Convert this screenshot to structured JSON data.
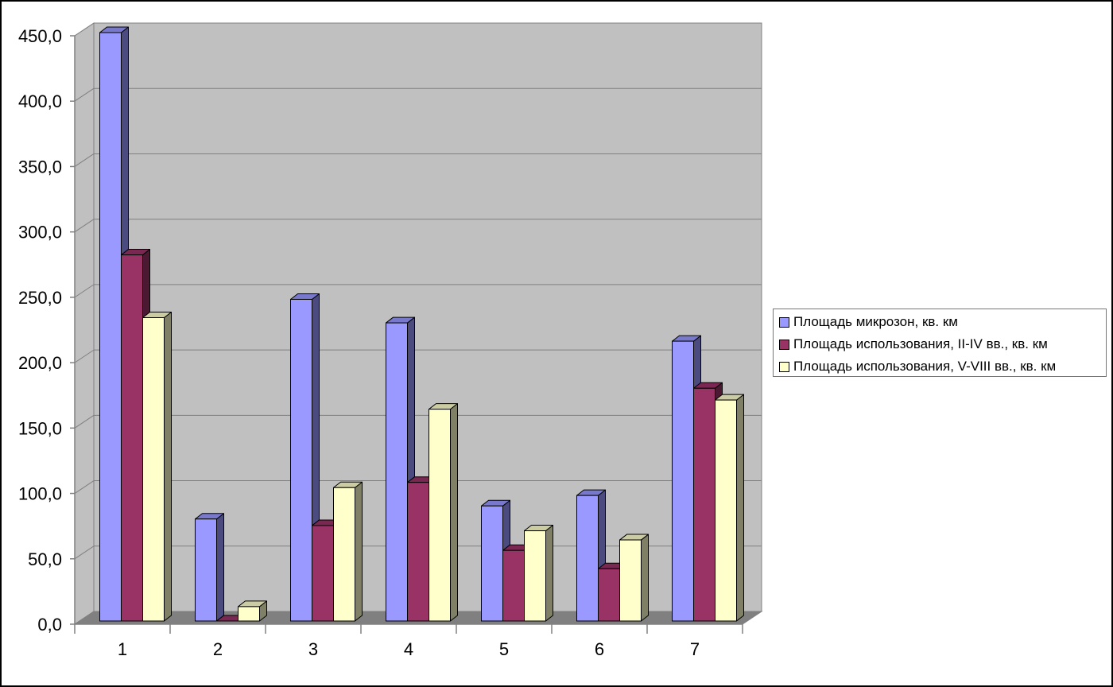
{
  "chart_data": {
    "type": "bar",
    "style": "3d-clustered-column",
    "categories": [
      "1",
      "2",
      "3",
      "4",
      "5",
      "6",
      "7"
    ],
    "series": [
      {
        "name": "Площадь микрозон, кв. км",
        "color": "#9999FF",
        "side_color": "#4B4B80",
        "top_color": "#7878CC",
        "values": [
          450.0,
          78.0,
          246.0,
          228.0,
          88.0,
          96.0,
          214.0
        ]
      },
      {
        "name": "Площадь использования, II-IV вв., кв. км",
        "color": "#993366",
        "side_color": "#4C1933",
        "top_color": "#7A2852",
        "values": [
          280.0,
          0.0,
          73.0,
          106.0,
          54.0,
          40.0,
          178.0
        ]
      },
      {
        "name": "Площадь использования, V-VIII вв., кв. км",
        "color": "#FFFFCC",
        "side_color": "#808066",
        "top_color": "#CCCCA3",
        "values": [
          232.0,
          11.0,
          102.0,
          162.0,
          69.0,
          62.0,
          169.0
        ]
      }
    ],
    "ylim": [
      0,
      450
    ],
    "yticks": [
      "0,0",
      "50,0",
      "100,0",
      "150,0",
      "200,0",
      "250,0",
      "300,0",
      "350,0",
      "400,0",
      "450,0"
    ],
    "xlabel": "",
    "ylabel": "",
    "title": "",
    "grid": true,
    "legend_position": "right",
    "wall_color": "#C0C0C0",
    "floor_color": "#808080"
  }
}
